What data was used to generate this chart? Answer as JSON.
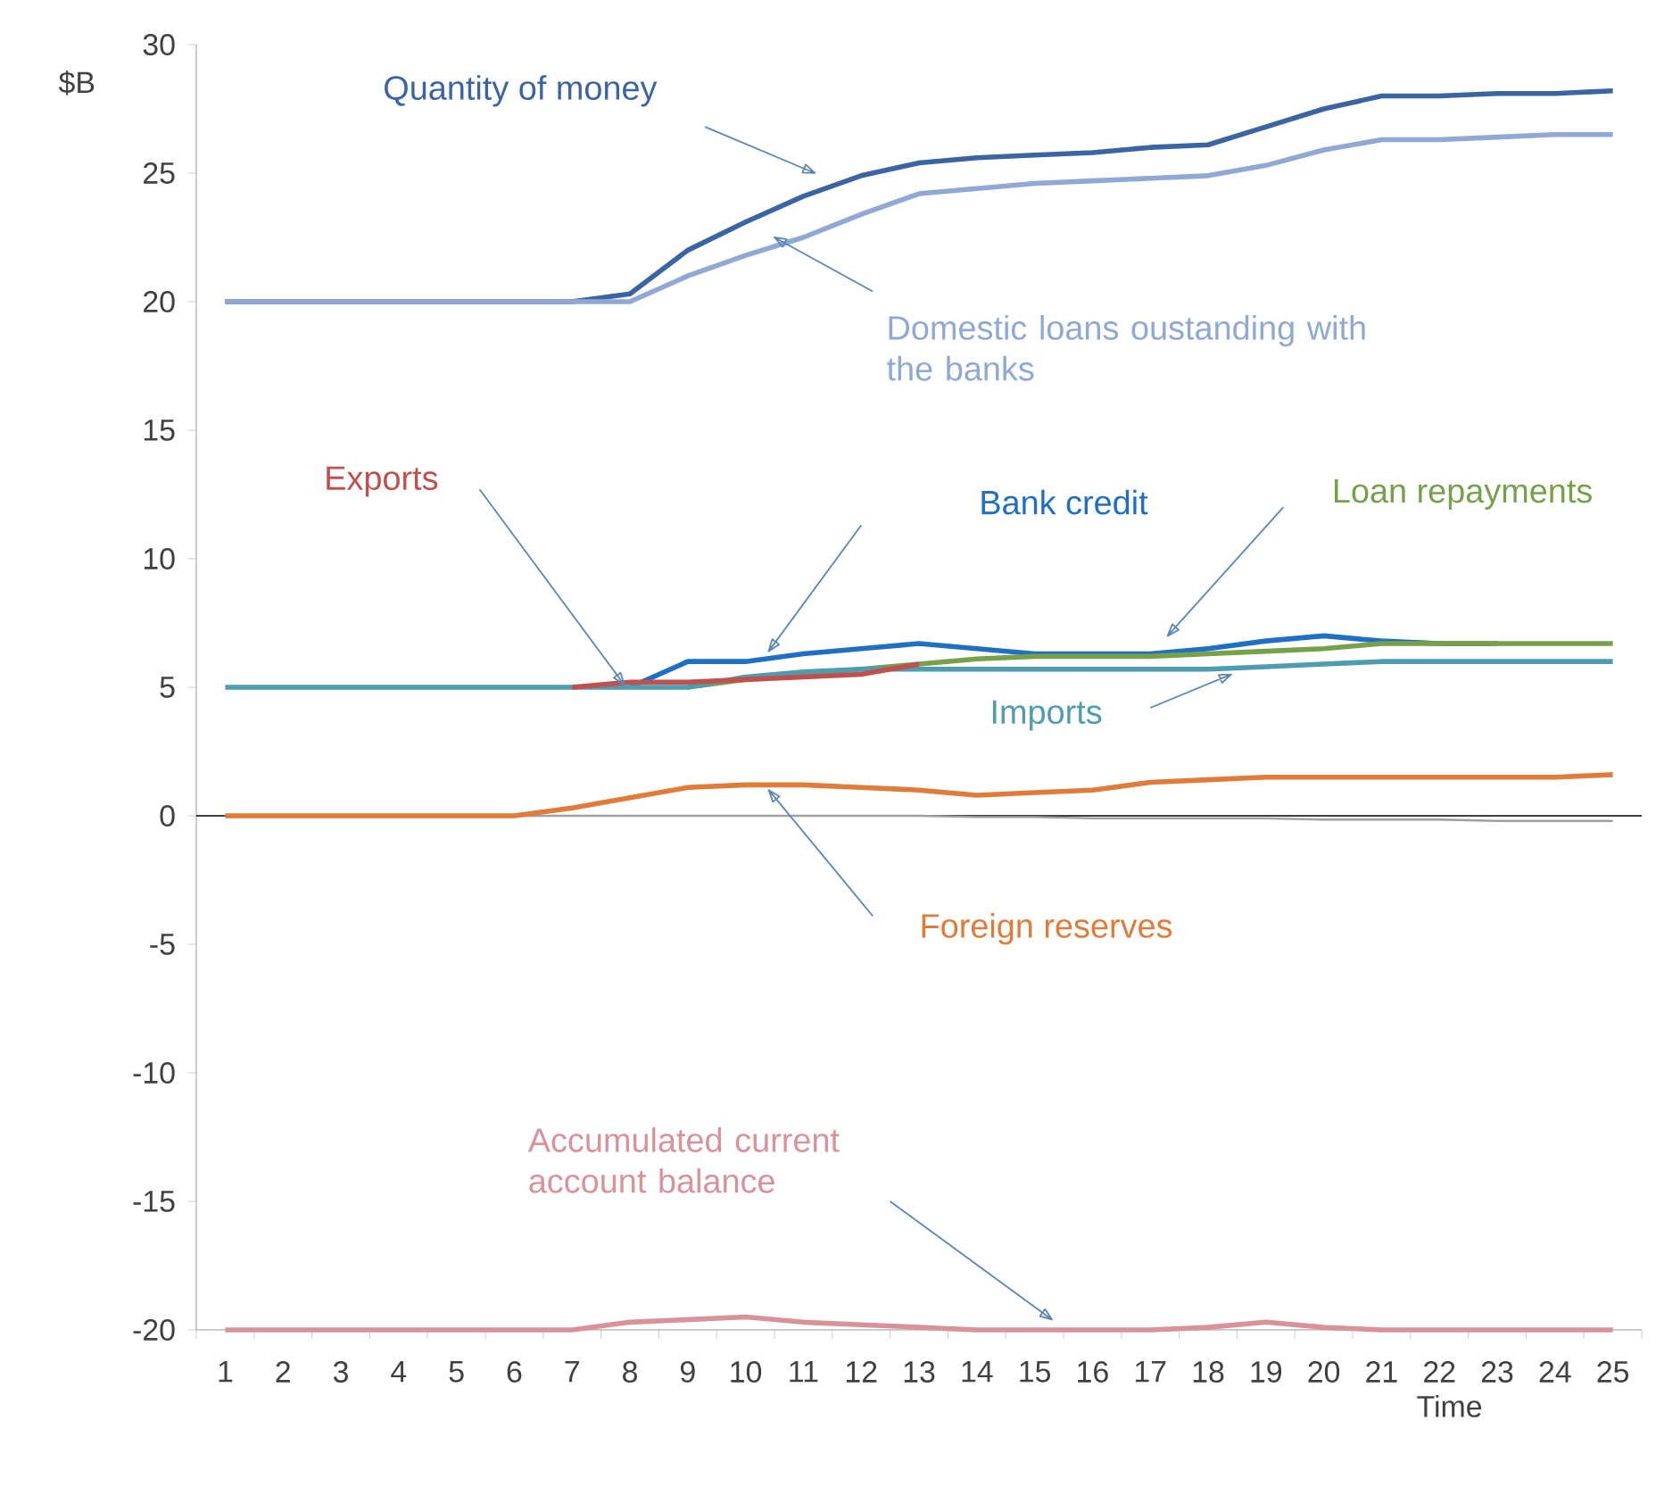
{
  "chart_data": {
    "type": "line",
    "xlabel": "Time",
    "ylabel": "$B",
    "categories": [
      "1",
      "2",
      "3",
      "4",
      "5",
      "6",
      "7",
      "8",
      "9",
      "10",
      "11",
      "12",
      "13",
      "14",
      "15",
      "16",
      "17",
      "18",
      "19",
      "20",
      "21",
      "22",
      "23",
      "24",
      "25"
    ],
    "ylim": [
      -20,
      30
    ],
    "yticks": [
      -20,
      -15,
      -10,
      -5,
      0,
      5,
      10,
      15,
      20,
      25,
      30
    ],
    "ref_lines": [
      {
        "axis": "y",
        "value": 0,
        "color": "#000000"
      }
    ],
    "series": [
      {
        "name": "Quantity of money",
        "color": "#3b64a3",
        "values": [
          20,
          20,
          20,
          20,
          20,
          20,
          20,
          20.3,
          22.0,
          23.1,
          24.1,
          24.9,
          25.4,
          25.6,
          25.7,
          25.8,
          26.0,
          26.1,
          26.8,
          27.5,
          28.0,
          28.0,
          28.1,
          28.1,
          28.2
        ]
      },
      {
        "name": "Domestic loans oustanding with the banks",
        "color": "#8fa8d4",
        "values": [
          20,
          20,
          20,
          20,
          20,
          20,
          20,
          20,
          21.0,
          21.8,
          22.5,
          23.4,
          24.2,
          24.4,
          24.6,
          24.7,
          24.8,
          24.9,
          25.3,
          25.9,
          26.3,
          26.3,
          26.4,
          26.5,
          26.5
        ]
      },
      {
        "name": "Exports",
        "color": "#c0504d",
        "values": [
          null,
          null,
          null,
          null,
          null,
          null,
          5,
          5.2,
          5.2,
          5.3,
          5.4,
          5.5,
          5.9,
          null,
          null,
          null,
          null,
          null,
          null,
          null,
          null,
          null,
          null,
          null,
          null
        ]
      },
      {
        "name": "Bank credit",
        "color": "#1f6fc4",
        "values": [
          null,
          null,
          null,
          null,
          null,
          null,
          null,
          5,
          6.0,
          6.0,
          6.3,
          6.5,
          6.7,
          6.5,
          6.3,
          6.3,
          6.3,
          6.5,
          6.8,
          7.0,
          6.8,
          6.7,
          6.7,
          null,
          null
        ]
      },
      {
        "name": "Loan repayments",
        "color": "#77a04a",
        "values": [
          null,
          null,
          null,
          null,
          null,
          null,
          null,
          null,
          5,
          5.3,
          5.5,
          5.7,
          5.9,
          6.1,
          6.2,
          6.2,
          6.2,
          6.3,
          6.4,
          6.5,
          6.7,
          6.7,
          6.7,
          6.7,
          6.7
        ]
      },
      {
        "name": "Imports",
        "color": "#4f9bb0",
        "values": [
          5,
          5,
          5,
          5,
          5,
          5,
          5,
          5,
          5,
          5.4,
          5.6,
          5.7,
          5.7,
          5.7,
          5.7,
          5.7,
          5.7,
          5.7,
          5.8,
          5.9,
          6.0,
          6.0,
          6.0,
          6.0,
          6.0
        ]
      },
      {
        "name": "Foreign reserves",
        "color": "#e07b39",
        "values": [
          0,
          0,
          0,
          0,
          0,
          0,
          0.3,
          0.7,
          1.1,
          1.2,
          1.2,
          1.1,
          1.0,
          0.8,
          0.9,
          1.0,
          1.3,
          1.4,
          1.5,
          1.5,
          1.5,
          1.5,
          1.5,
          1.5,
          1.6
        ]
      },
      {
        "name": "Accumulated current account balance",
        "color": "#d9919a",
        "values": [
          -20,
          -20,
          -20,
          -20,
          -20,
          -20,
          -20,
          -19.7,
          -19.6,
          -19.5,
          -19.7,
          -19.8,
          -19.9,
          -20,
          -20,
          -20,
          -20,
          -19.9,
          -19.7,
          -19.9,
          -20,
          -20,
          -20,
          -20,
          -20
        ]
      },
      {
        "color": "#a0a0a0",
        "values": [
          0,
          0,
          0,
          0,
          0,
          0,
          0,
          0,
          0,
          0,
          0,
          0,
          0,
          -0.05,
          -0.05,
          -0.1,
          -0.1,
          -0.1,
          -0.1,
          -0.15,
          -0.15,
          -0.15,
          -0.2,
          -0.2,
          -0.2
        ]
      }
    ]
  }
}
